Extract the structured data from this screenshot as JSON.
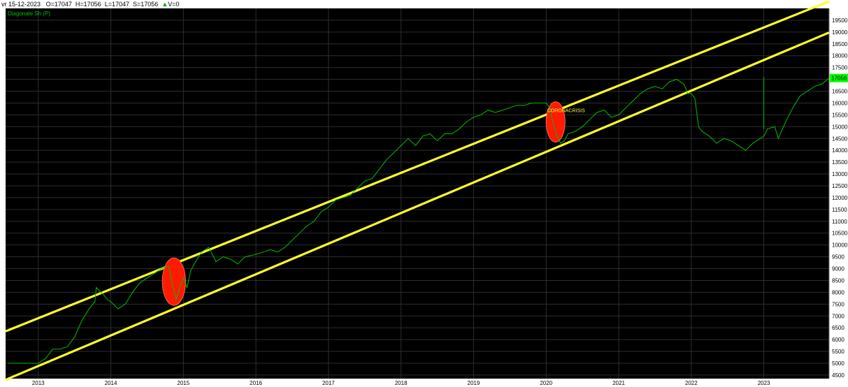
{
  "header": {
    "date": "vr 15-12-2023",
    "open": "O=17047",
    "high": "H=17056",
    "low": "L=17047",
    "close": "S=17056",
    "volume_arrow": "▲",
    "volume": "V=0"
  },
  "chart_data": {
    "type": "line",
    "title": "Diagonale Sh (P)",
    "x_ticks": [
      "2013",
      "2014",
      "2015",
      "2016",
      "2017",
      "2018",
      "2019",
      "2020",
      "2021",
      "2022",
      "2023"
    ],
    "y_ticks": [
      4500,
      5000,
      5500,
      6000,
      6500,
      7000,
      7500,
      8000,
      8500,
      9000,
      9500,
      10000,
      10500,
      11000,
      11500,
      12000,
      12500,
      13000,
      13500,
      14000,
      14500,
      15000,
      15500,
      16000,
      16500,
      17000,
      17500,
      18000,
      18500,
      19000,
      19500
    ],
    "xlim": [
      2012.55,
      2023.9
    ],
    "ylim": [
      4350,
      20000
    ],
    "last_value_label": "17056",
    "last_value": 17056,
    "grid": true,
    "colors": {
      "background": "#000000",
      "grid": "#2e2e2e",
      "price_line": "#00c000",
      "channel_lines": "#ffff2a",
      "highlight": "#ff1a00",
      "axis_text": "#000000",
      "last_value_bg": "#00ff00"
    },
    "series": [
      {
        "x": [
          2012.58,
          2012.62,
          2012.7,
          2012.85,
          2013.0,
          2013.1,
          2013.2,
          2013.3,
          2013.4,
          2013.5,
          2013.6,
          2013.7,
          2013.78,
          2013.8,
          2013.9,
          2013.95,
          2014.0,
          2014.1,
          2014.2,
          2014.3,
          2014.4,
          2014.5,
          2014.6,
          2014.7,
          2014.8,
          2014.85,
          2014.9,
          2014.95,
          2015.0,
          2015.05,
          2015.1,
          2015.15,
          2015.25,
          2015.35,
          2015.45,
          2015.55,
          2015.65,
          2015.75,
          2015.85,
          2016.0,
          2016.1,
          2016.2,
          2016.3,
          2016.4,
          2016.5,
          2016.6,
          2016.7,
          2016.8,
          2016.9,
          2017.0,
          2017.1,
          2017.2,
          2017.3,
          2017.4,
          2017.5,
          2017.6,
          2017.7,
          2017.8,
          2017.9,
          2018.0,
          2018.1,
          2018.2,
          2018.3,
          2018.4,
          2018.5,
          2018.6,
          2018.7,
          2018.8,
          2018.9,
          2019.0,
          2019.1,
          2019.2,
          2019.3,
          2019.4,
          2019.5,
          2019.6,
          2019.7,
          2019.8,
          2019.9,
          2020.0,
          2020.05,
          2020.1,
          2020.15,
          2020.2,
          2020.25,
          2020.3,
          2020.4,
          2020.5,
          2020.6,
          2020.7,
          2020.8,
          2020.9,
          2021.0,
          2021.1,
          2021.2,
          2021.3,
          2021.4,
          2021.5,
          2021.6,
          2021.7,
          2021.8,
          2021.9,
          2021.95,
          2022.0,
          2022.05,
          2022.1,
          2022.15,
          2022.25,
          2022.35,
          2022.45,
          2022.55,
          2022.65,
          2022.75,
          2022.85,
          2022.95,
          2023.0,
          2023.05,
          2023.15,
          2023.2,
          2023.3,
          2023.4,
          2023.5,
          2023.6,
          2023.7,
          2023.8,
          2023.9
        ],
        "y": [
          5000,
          5000,
          5000,
          5000,
          5000,
          5200,
          5600,
          5600,
          5700,
          6100,
          6800,
          7300,
          7600,
          8200,
          7900,
          7700,
          7600,
          7300,
          7500,
          8000,
          8400,
          8600,
          8800,
          9000,
          9100,
          8300,
          7700,
          8200,
          8600,
          8200,
          8900,
          9200,
          9700,
          9900,
          9300,
          9500,
          9400,
          9200,
          9500,
          9600,
          9700,
          9800,
          9700,
          9900,
          10200,
          10500,
          10800,
          11000,
          11400,
          11600,
          11900,
          12000,
          12100,
          12400,
          12700,
          12800,
          13200,
          13600,
          13900,
          14200,
          14500,
          14200,
          14600,
          14700,
          14400,
          14700,
          14700,
          14900,
          15200,
          15400,
          15500,
          15700,
          15600,
          15700,
          15800,
          15900,
          15900,
          16000,
          16000,
          16000,
          15800,
          15100,
          14600,
          14300,
          14400,
          14700,
          14800,
          15000,
          15300,
          15600,
          15700,
          15400,
          15500,
          15800,
          16100,
          16400,
          16600,
          16700,
          16600,
          16900,
          17000,
          16800,
          16400,
          16400,
          16200,
          15000,
          14800,
          14600,
          14300,
          14500,
          14400,
          14200,
          14000,
          14300,
          14500,
          14600,
          14900,
          15000,
          14500,
          15200,
          15800,
          16300,
          16500,
          16700,
          16800,
          17056
        ]
      }
    ],
    "annotations": [
      {
        "text": "CORONACRISIS",
        "x": 2020.13,
        "y": 15700
      }
    ],
    "channel_lines": [
      {
        "x": [
          2012.55,
          2023.9
        ],
        "y": [
          6350,
          20300
        ]
      },
      {
        "x": [
          2012.55,
          2023.9
        ],
        "y": [
          4300,
          18980
        ]
      }
    ],
    "highlights": [
      {
        "cx": 2014.87,
        "cy": 8450,
        "rx_years": 0.16,
        "ry_value": 1000
      },
      {
        "cx": 2020.13,
        "cy": 15200,
        "rx_years": 0.13,
        "ry_value": 850
      }
    ]
  }
}
